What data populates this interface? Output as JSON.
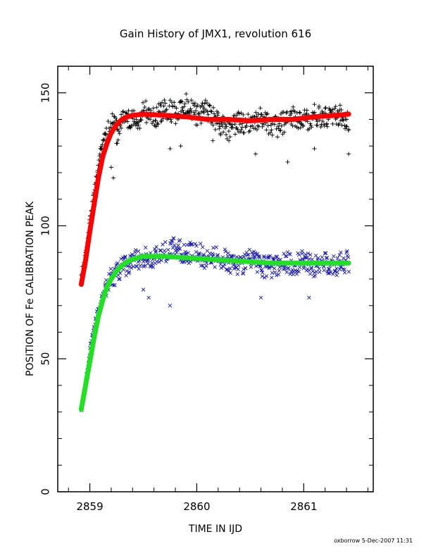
{
  "chart_data": {
    "type": "scatter",
    "title": "Gain History of JMX1, revolution 616",
    "xlabel": "TIME IN IJD",
    "ylabel": "POSITION OF Fe CALIBRATION PEAK",
    "xlim": [
      2858.7,
      2861.65
    ],
    "ylim": [
      0,
      160
    ],
    "xticks": [
      2859,
      2860,
      2861
    ],
    "xtick_labels": [
      "2859",
      "2860",
      "2861"
    ],
    "yticks": [
      0,
      50,
      100,
      150
    ],
    "ytick_labels": [
      "0",
      "50",
      "100",
      "150"
    ],
    "grid": false,
    "footer": "oxborrow   5-Dec-2007 11:31",
    "series": [
      {
        "marker": "plus",
        "color": "#000000",
        "x": [
          2858.92,
          2858.95,
          2858.98,
          2859.0,
          2859.03,
          2859.06,
          2859.09,
          2859.12,
          2859.15,
          2859.18,
          2859.22,
          2859.26,
          2859.3,
          2859.35,
          2859.4,
          2859.45,
          2859.5,
          2859.6,
          2859.7,
          2859.8,
          2859.9,
          2860.0,
          2860.1,
          2860.2,
          2860.3,
          2860.4,
          2860.5,
          2860.6,
          2860.7,
          2860.8,
          2860.9,
          2861.0,
          2861.1,
          2861.2,
          2861.3,
          2861.42
        ],
        "y": [
          81,
          87,
          95,
          103,
          110,
          118,
          126,
          132,
          135,
          138,
          140,
          136,
          142,
          141,
          143,
          140,
          145,
          142,
          146,
          144,
          147,
          143,
          145,
          140,
          138,
          141,
          139,
          142,
          138,
          140,
          142,
          141,
          143,
          142,
          144,
          141
        ],
        "outliers_x": [
          2859.2,
          2859.22,
          2859.25,
          2859.75,
          2859.85,
          2860.15,
          2860.3,
          2860.55,
          2860.85,
          2861.1,
          2861.42
        ],
        "outliers_y": [
          122,
          118,
          131,
          129,
          130,
          132,
          132,
          127,
          124,
          129,
          127
        ]
      },
      {
        "marker": "cross",
        "color": "#1a1ab0",
        "x": [
          2858.92,
          2858.95,
          2858.98,
          2859.0,
          2859.03,
          2859.06,
          2859.09,
          2859.12,
          2859.16,
          2859.2,
          2859.25,
          2859.3,
          2859.4,
          2859.5,
          2859.6,
          2859.7,
          2859.8,
          2859.9,
          2860.0,
          2860.1,
          2860.2,
          2860.3,
          2860.4,
          2860.5,
          2860.6,
          2860.7,
          2860.8,
          2860.9,
          2861.0,
          2861.1,
          2861.2,
          2861.3,
          2861.42
        ],
        "y": [
          31,
          38,
          46,
          53,
          60,
          66,
          70,
          74,
          79,
          82,
          84,
          86,
          88,
          90,
          89,
          92,
          93,
          91,
          92,
          88,
          90,
          88,
          87,
          89,
          86,
          86,
          88,
          87,
          88,
          86,
          88,
          87,
          88
        ],
        "outliers_x": [
          2859.5,
          2859.55,
          2859.75,
          2860.6,
          2861.05
        ],
        "outliers_y": [
          76,
          73,
          70,
          73,
          73
        ]
      }
    ],
    "fits": [
      {
        "color": "#ff0000",
        "x": [
          2858.92,
          2858.96,
          2859.0,
          2859.04,
          2859.08,
          2859.12,
          2859.16,
          2859.2,
          2859.25,
          2859.3,
          2859.35,
          2859.4,
          2859.5,
          2859.7,
          2859.9,
          2860.1,
          2860.3,
          2860.5,
          2860.7,
          2860.9,
          2861.1,
          2861.3,
          2861.42
        ],
        "y": [
          78,
          87,
          98,
          108,
          118,
          126,
          131,
          135,
          138,
          140,
          141,
          141.5,
          142,
          141.5,
          141,
          140,
          140,
          139.5,
          140,
          140,
          141,
          141.5,
          142
        ]
      },
      {
        "color": "#22e022",
        "x": [
          2858.92,
          2858.96,
          2859.0,
          2859.04,
          2859.08,
          2859.12,
          2859.16,
          2859.2,
          2859.25,
          2859.3,
          2859.35,
          2859.4,
          2859.5,
          2859.7,
          2859.9,
          2860.1,
          2860.3,
          2860.5,
          2860.7,
          2860.9,
          2861.1,
          2861.3,
          2861.42
        ],
        "y": [
          31,
          40,
          49,
          58,
          66,
          72,
          77,
          80,
          83,
          85,
          86.5,
          87.5,
          88.5,
          88.5,
          88,
          87.5,
          87,
          86.5,
          86,
          86,
          86,
          86,
          86
        ]
      }
    ]
  }
}
